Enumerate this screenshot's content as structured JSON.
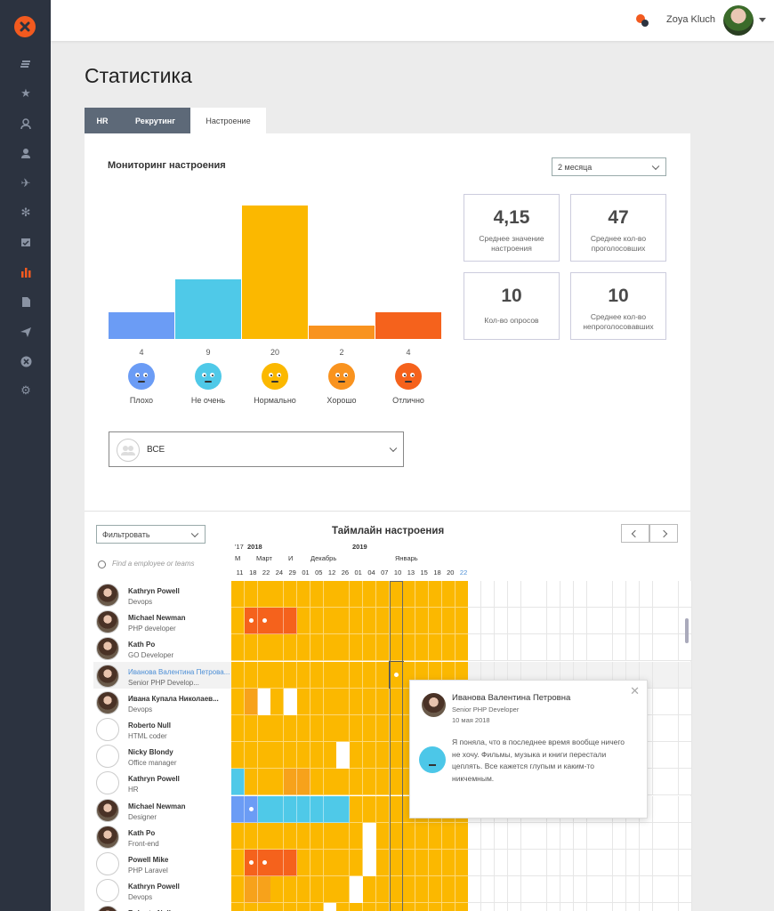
{
  "topbar": {
    "user_name": "Zoya Kluch"
  },
  "page_title": "Статистика",
  "tabs": [
    {
      "label": "HR",
      "active": false
    },
    {
      "label": "Рекрутинг",
      "active": false
    },
    {
      "label": "Настроение",
      "active": true
    }
  ],
  "mood": {
    "title": "Мониторинг настроения",
    "period": "2 месяца",
    "levels": [
      {
        "label": "Плохо",
        "count": 4,
        "color": "#6b9cf5"
      },
      {
        "label": "Не очень",
        "count": 9,
        "color": "#4fc9e8"
      },
      {
        "label": "Нормально",
        "count": 20,
        "color": "#fbb800"
      },
      {
        "label": "Хорошо",
        "count": 2,
        "color": "#f9931f"
      },
      {
        "label": "Отлично",
        "count": 4,
        "color": "#f5621c"
      }
    ],
    "stats": [
      {
        "value": "4,15",
        "label": "Среднее значение настроения"
      },
      {
        "value": "47",
        "label": "Среднее кол-во проголосовших"
      },
      {
        "value": "10",
        "label": "Кол-во опросов"
      },
      {
        "value": "10",
        "label": "Среднее кол-во непроголосовавших"
      }
    ],
    "group": "ВСЕ"
  },
  "timeline": {
    "title": "Таймлайн настроения",
    "filter": "Фильтровать",
    "search_placeholder": "Find a employee or teams",
    "years": [
      "'17",
      "2018",
      "2019"
    ],
    "months": [
      "М",
      "Март",
      "И",
      "Декабрь",
      "Январь"
    ],
    "days": [
      "11",
      "18",
      "22",
      "24",
      "29",
      "01",
      "05",
      "12",
      "26",
      "01",
      "04",
      "07",
      "10",
      "13",
      "15",
      "18",
      "20",
      "22"
    ],
    "employees": [
      {
        "name": "Kathryn Powell",
        "role": "Devops",
        "photo": true
      },
      {
        "name": "Michael Newman",
        "role": "PHP developer",
        "photo": true
      },
      {
        "name": "Kath Po",
        "role": "GO Developer",
        "photo": true
      },
      {
        "name": "Иванова Валентина Петрова...",
        "role": "Senior PHP Develop...",
        "photo": true
      },
      {
        "name": "Ивана Купала Николаев...",
        "role": "Devops",
        "photo": true
      },
      {
        "name": "Roberto Null",
        "role": "HTML coder",
        "photo": false
      },
      {
        "name": "Nicky Blondy",
        "role": "Office manager",
        "photo": false
      },
      {
        "name": "Kathryn Powell",
        "role": "HR",
        "photo": false
      },
      {
        "name": "Michael Newman",
        "role": "Designer",
        "photo": true
      },
      {
        "name": "Kath Po",
        "role": "Front-end",
        "photo": true
      },
      {
        "name": "Powell Mike",
        "role": "PHP Laravel",
        "photo": false
      },
      {
        "name": "Kathryn Powell",
        "role": "Devops",
        "photo": false
      },
      {
        "name": "Roberto Null",
        "role": "",
        "photo": true
      }
    ],
    "palette": {
      "Y": "#fbb800",
      "O": "#f7a21b",
      "R": "#f5621c",
      "C": "#4fc9e8",
      "B": "#6b9cf5",
      "W": "#ffffff",
      "r": "#f5621c",
      "b": "#6b9cf5"
    },
    "rows": [
      "YYYYYYYYYYYYYYYYYY",
      "YrrRRYYYYYYYYYYYYY",
      "YYYYYYYYYYYYYYYYYY",
      "YYYYYYYYYYYYYYYYYY",
      "YOWYWYYYYYYYYYYYYY",
      "YYYYYYYYYYYYYYYYYY",
      "YYYYYYYYWYYYYYYYYY",
      "CYYYOOYYYYYYYYYYYY",
      "BbCCCCCCCYYYYYYYYY",
      "YYYYYYYYYYWYYYYYYY",
      "YrrRRYYYYYWYYYYYYY",
      "YOOYYYYYYWYYYYYYYY",
      "YYYYYYYWYYYYYYYYYY"
    ]
  },
  "popup": {
    "name": "Иванова Валентина Петровна",
    "role": "Senior PHP Developer",
    "date": "10 мая 2018",
    "text": "Я поняла, что в последнее время вообще ничего не хочу. Фильмы, музыка и книги перестали цеплять. Все кажется глупым и каким-то никчемным."
  }
}
